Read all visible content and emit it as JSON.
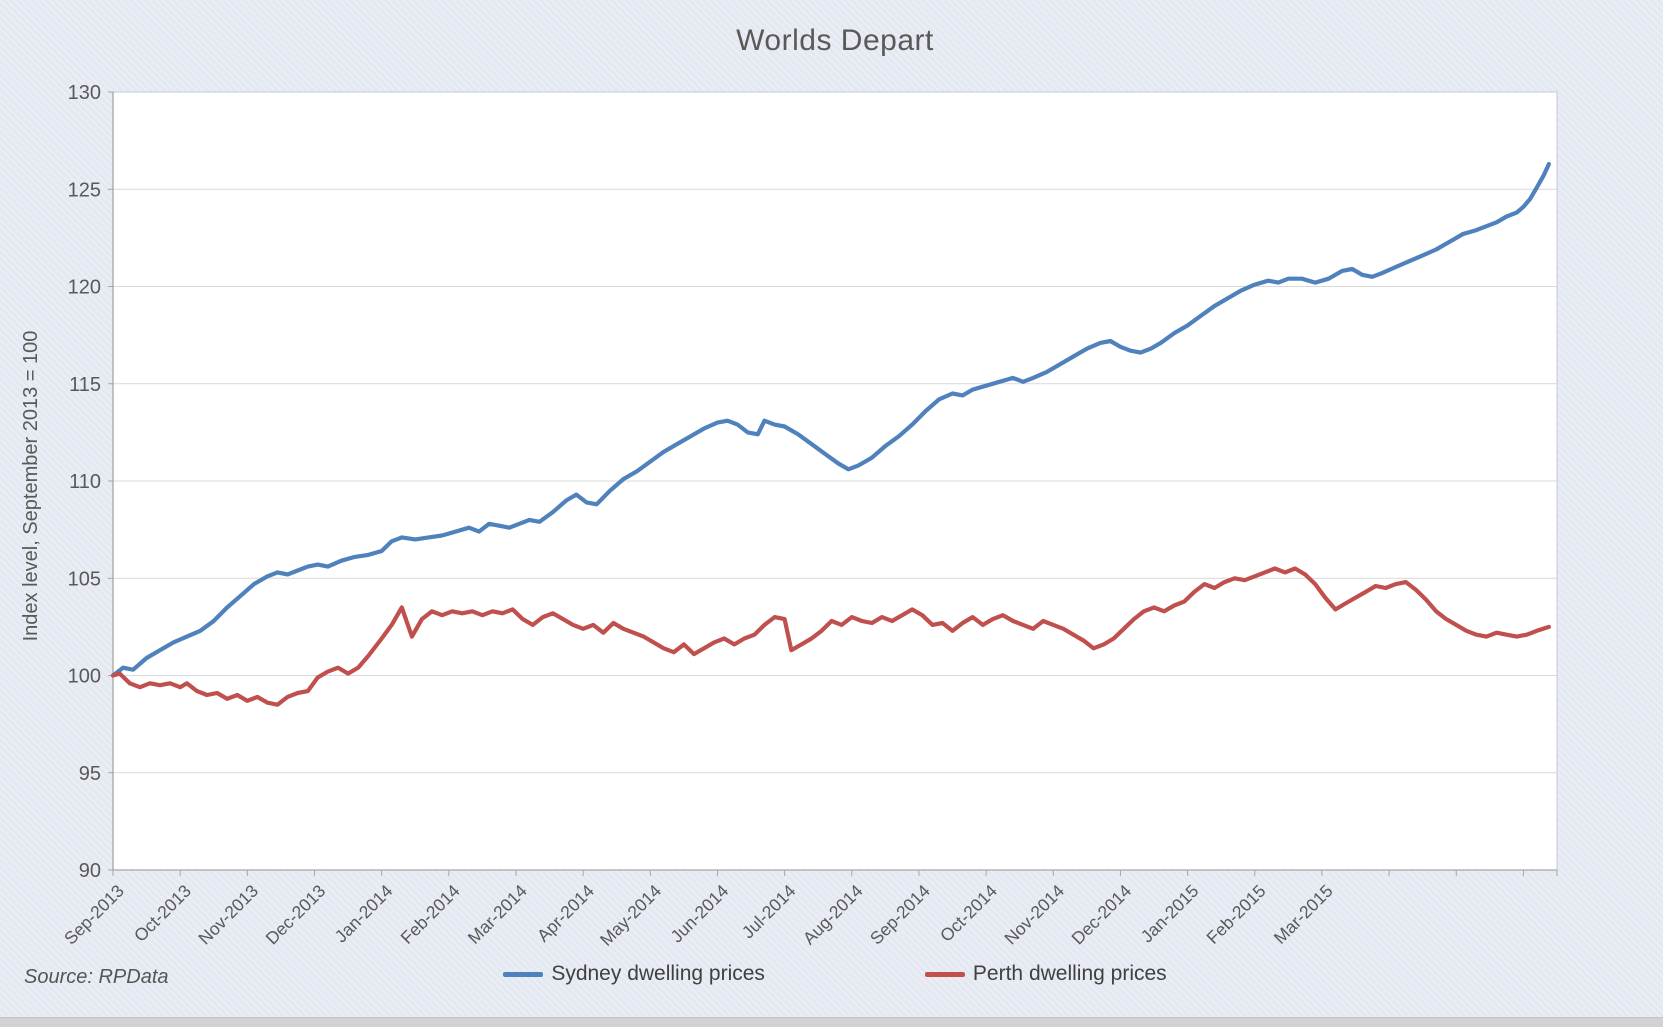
{
  "chart_data": {
    "type": "line",
    "title": "Worlds Depart",
    "ylabel": "Index level, September 2013 = 100",
    "xlabel": "",
    "ylim": [
      90,
      130
    ],
    "y_ticks": [
      90,
      95,
      100,
      105,
      110,
      115,
      120,
      125,
      130
    ],
    "x_unit": "months since Sep-2013",
    "xlim_months": [
      0,
      21.5
    ],
    "x_tick_labels": [
      "Sep-2013",
      "Oct-2013",
      "Nov-2013",
      "Dec-2013",
      "Jan-2014",
      "Feb-2014",
      "Mar-2014",
      "Apr-2014",
      "May-2014",
      "Jun-2014",
      "Jul-2014",
      "Aug-2014",
      "Sep-2014",
      "Oct-2014",
      "Nov-2014",
      "Dec-2014",
      "Jan-2015",
      "Feb-2015",
      "Mar-2015"
    ],
    "grid": "horizontal",
    "legend_position": "bottom",
    "source": "Source: RPData",
    "colors": {
      "sydney": "#4F81BD",
      "perth": "#C0504D",
      "gridline": "#d9d9d9",
      "axis": "#a6a6a6",
      "plot_border": "#c3c9d2",
      "tick_text": "#595959"
    },
    "series": [
      {
        "name": "Sydney dwelling prices",
        "color": "#4F81BD",
        "points": [
          [
            0,
            100
          ],
          [
            0.15,
            100.4
          ],
          [
            0.3,
            100.3
          ],
          [
            0.5,
            100.9
          ],
          [
            0.7,
            101.3
          ],
          [
            0.9,
            101.7
          ],
          [
            1.1,
            102
          ],
          [
            1.3,
            102.3
          ],
          [
            1.5,
            102.8
          ],
          [
            1.7,
            103.5
          ],
          [
            1.9,
            104.1
          ],
          [
            2.1,
            104.7
          ],
          [
            2.3,
            105.1
          ],
          [
            2.45,
            105.3
          ],
          [
            2.6,
            105.2
          ],
          [
            2.75,
            105.4
          ],
          [
            2.9,
            105.6
          ],
          [
            3.05,
            105.7
          ],
          [
            3.2,
            105.6
          ],
          [
            3.4,
            105.9
          ],
          [
            3.6,
            106.1
          ],
          [
            3.8,
            106.2
          ],
          [
            4,
            106.4
          ],
          [
            4.15,
            106.9
          ],
          [
            4.3,
            107.1
          ],
          [
            4.5,
            107
          ],
          [
            4.7,
            107.1
          ],
          [
            4.9,
            107.2
          ],
          [
            5.1,
            107.4
          ],
          [
            5.3,
            107.6
          ],
          [
            5.45,
            107.4
          ],
          [
            5.6,
            107.8
          ],
          [
            5.75,
            107.7
          ],
          [
            5.9,
            107.6
          ],
          [
            6.05,
            107.8
          ],
          [
            6.2,
            108
          ],
          [
            6.35,
            107.9
          ],
          [
            6.55,
            108.4
          ],
          [
            6.75,
            109
          ],
          [
            6.9,
            109.3
          ],
          [
            7.05,
            108.9
          ],
          [
            7.2,
            108.8
          ],
          [
            7.4,
            109.5
          ],
          [
            7.6,
            110.1
          ],
          [
            7.8,
            110.5
          ],
          [
            8,
            111
          ],
          [
            8.2,
            111.5
          ],
          [
            8.4,
            111.9
          ],
          [
            8.6,
            112.3
          ],
          [
            8.8,
            112.7
          ],
          [
            9,
            113
          ],
          [
            9.15,
            113.1
          ],
          [
            9.3,
            112.9
          ],
          [
            9.45,
            112.5
          ],
          [
            9.6,
            112.4
          ],
          [
            9.7,
            113.1
          ],
          [
            9.85,
            112.9
          ],
          [
            10,
            112.8
          ],
          [
            10.2,
            112.4
          ],
          [
            10.4,
            111.9
          ],
          [
            10.6,
            111.4
          ],
          [
            10.8,
            110.9
          ],
          [
            10.95,
            110.6
          ],
          [
            11.1,
            110.8
          ],
          [
            11.3,
            111.2
          ],
          [
            11.5,
            111.8
          ],
          [
            11.7,
            112.3
          ],
          [
            11.9,
            112.9
          ],
          [
            12.1,
            113.6
          ],
          [
            12.3,
            114.2
          ],
          [
            12.5,
            114.5
          ],
          [
            12.65,
            114.4
          ],
          [
            12.8,
            114.7
          ],
          [
            13,
            114.9
          ],
          [
            13.2,
            115.1
          ],
          [
            13.4,
            115.3
          ],
          [
            13.55,
            115.1
          ],
          [
            13.7,
            115.3
          ],
          [
            13.9,
            115.6
          ],
          [
            14.1,
            116
          ],
          [
            14.3,
            116.4
          ],
          [
            14.5,
            116.8
          ],
          [
            14.7,
            117.1
          ],
          [
            14.85,
            117.2
          ],
          [
            15,
            116.9
          ],
          [
            15.15,
            116.7
          ],
          [
            15.3,
            116.6
          ],
          [
            15.45,
            116.8
          ],
          [
            15.6,
            117.1
          ],
          [
            15.8,
            117.6
          ],
          [
            16,
            118
          ],
          [
            16.2,
            118.5
          ],
          [
            16.4,
            119
          ],
          [
            16.6,
            119.4
          ],
          [
            16.8,
            119.8
          ],
          [
            17,
            120.1
          ],
          [
            17.2,
            120.3
          ],
          [
            17.35,
            120.2
          ],
          [
            17.5,
            120.4
          ],
          [
            17.7,
            120.4
          ],
          [
            17.9,
            120.2
          ],
          [
            18.1,
            120.4
          ],
          [
            18.3,
            120.8
          ],
          [
            18.45,
            120.9
          ],
          [
            18.6,
            120.6
          ],
          [
            18.75,
            120.5
          ],
          [
            18.9,
            120.7
          ],
          [
            19.1,
            121
          ],
          [
            19.3,
            121.3
          ],
          [
            19.5,
            121.6
          ],
          [
            19.7,
            121.9
          ],
          [
            19.9,
            122.3
          ],
          [
            20.1,
            122.7
          ],
          [
            20.3,
            122.9
          ],
          [
            20.45,
            123.1
          ],
          [
            20.6,
            123.3
          ],
          [
            20.75,
            123.6
          ],
          [
            20.9,
            123.8
          ],
          [
            21,
            124.1
          ],
          [
            21.1,
            124.5
          ],
          [
            21.2,
            125.1
          ],
          [
            21.3,
            125.7
          ],
          [
            21.38,
            126.3
          ]
        ]
      },
      {
        "name": "Perth dwelling prices",
        "color": "#C0504D",
        "points": [
          [
            0,
            100
          ],
          [
            0.1,
            100.1
          ],
          [
            0.25,
            99.6
          ],
          [
            0.4,
            99.4
          ],
          [
            0.55,
            99.6
          ],
          [
            0.7,
            99.5
          ],
          [
            0.85,
            99.6
          ],
          [
            1,
            99.4
          ],
          [
            1.1,
            99.6
          ],
          [
            1.25,
            99.2
          ],
          [
            1.4,
            99
          ],
          [
            1.55,
            99.1
          ],
          [
            1.7,
            98.8
          ],
          [
            1.85,
            99
          ],
          [
            2,
            98.7
          ],
          [
            2.15,
            98.9
          ],
          [
            2.3,
            98.6
          ],
          [
            2.45,
            98.5
          ],
          [
            2.6,
            98.9
          ],
          [
            2.75,
            99.1
          ],
          [
            2.9,
            99.2
          ],
          [
            3.05,
            99.9
          ],
          [
            3.2,
            100.2
          ],
          [
            3.35,
            100.4
          ],
          [
            3.5,
            100.1
          ],
          [
            3.65,
            100.4
          ],
          [
            3.8,
            101
          ],
          [
            4,
            101.9
          ],
          [
            4.15,
            102.6
          ],
          [
            4.3,
            103.5
          ],
          [
            4.45,
            102
          ],
          [
            4.6,
            102.9
          ],
          [
            4.75,
            103.3
          ],
          [
            4.9,
            103.1
          ],
          [
            5.05,
            103.3
          ],
          [
            5.2,
            103.2
          ],
          [
            5.35,
            103.3
          ],
          [
            5.5,
            103.1
          ],
          [
            5.65,
            103.3
          ],
          [
            5.8,
            103.2
          ],
          [
            5.95,
            103.4
          ],
          [
            6.1,
            102.9
          ],
          [
            6.25,
            102.6
          ],
          [
            6.4,
            103
          ],
          [
            6.55,
            103.2
          ],
          [
            6.7,
            102.9
          ],
          [
            6.85,
            102.6
          ],
          [
            7,
            102.4
          ],
          [
            7.15,
            102.6
          ],
          [
            7.3,
            102.2
          ],
          [
            7.45,
            102.7
          ],
          [
            7.6,
            102.4
          ],
          [
            7.75,
            102.2
          ],
          [
            7.9,
            102
          ],
          [
            8.05,
            101.7
          ],
          [
            8.2,
            101.4
          ],
          [
            8.35,
            101.2
          ],
          [
            8.5,
            101.6
          ],
          [
            8.65,
            101.1
          ],
          [
            8.8,
            101.4
          ],
          [
            8.95,
            101.7
          ],
          [
            9.1,
            101.9
          ],
          [
            9.25,
            101.6
          ],
          [
            9.4,
            101.9
          ],
          [
            9.55,
            102.1
          ],
          [
            9.7,
            102.6
          ],
          [
            9.85,
            103
          ],
          [
            10,
            102.9
          ],
          [
            10.1,
            101.3
          ],
          [
            10.25,
            101.6
          ],
          [
            10.4,
            101.9
          ],
          [
            10.55,
            102.3
          ],
          [
            10.7,
            102.8
          ],
          [
            10.85,
            102.6
          ],
          [
            11,
            103
          ],
          [
            11.15,
            102.8
          ],
          [
            11.3,
            102.7
          ],
          [
            11.45,
            103
          ],
          [
            11.6,
            102.8
          ],
          [
            11.75,
            103.1
          ],
          [
            11.9,
            103.4
          ],
          [
            12.05,
            103.1
          ],
          [
            12.2,
            102.6
          ],
          [
            12.35,
            102.7
          ],
          [
            12.5,
            102.3
          ],
          [
            12.65,
            102.7
          ],
          [
            12.8,
            103
          ],
          [
            12.95,
            102.6
          ],
          [
            13.1,
            102.9
          ],
          [
            13.25,
            103.1
          ],
          [
            13.4,
            102.8
          ],
          [
            13.55,
            102.6
          ],
          [
            13.7,
            102.4
          ],
          [
            13.85,
            102.8
          ],
          [
            14,
            102.6
          ],
          [
            14.15,
            102.4
          ],
          [
            14.3,
            102.1
          ],
          [
            14.45,
            101.8
          ],
          [
            14.6,
            101.4
          ],
          [
            14.75,
            101.6
          ],
          [
            14.9,
            101.9
          ],
          [
            15.05,
            102.4
          ],
          [
            15.2,
            102.9
          ],
          [
            15.35,
            103.3
          ],
          [
            15.5,
            103.5
          ],
          [
            15.65,
            103.3
          ],
          [
            15.8,
            103.6
          ],
          [
            15.95,
            103.8
          ],
          [
            16.1,
            104.3
          ],
          [
            16.25,
            104.7
          ],
          [
            16.4,
            104.5
          ],
          [
            16.55,
            104.8
          ],
          [
            16.7,
            105
          ],
          [
            16.85,
            104.9
          ],
          [
            17,
            105.1
          ],
          [
            17.15,
            105.3
          ],
          [
            17.3,
            105.5
          ],
          [
            17.45,
            105.3
          ],
          [
            17.6,
            105.5
          ],
          [
            17.75,
            105.2
          ],
          [
            17.9,
            104.7
          ],
          [
            18.05,
            104
          ],
          [
            18.2,
            103.4
          ],
          [
            18.35,
            103.7
          ],
          [
            18.5,
            104
          ],
          [
            18.65,
            104.3
          ],
          [
            18.8,
            104.6
          ],
          [
            18.95,
            104.5
          ],
          [
            19.1,
            104.7
          ],
          [
            19.25,
            104.8
          ],
          [
            19.4,
            104.4
          ],
          [
            19.55,
            103.9
          ],
          [
            19.7,
            103.3
          ],
          [
            19.85,
            102.9
          ],
          [
            20,
            102.6
          ],
          [
            20.15,
            102.3
          ],
          [
            20.3,
            102.1
          ],
          [
            20.45,
            102
          ],
          [
            20.6,
            102.2
          ],
          [
            20.75,
            102.1
          ],
          [
            20.9,
            102
          ],
          [
            21.05,
            102.1
          ],
          [
            21.2,
            102.3
          ],
          [
            21.38,
            102.5
          ]
        ]
      }
    ]
  },
  "legend": {
    "items": [
      {
        "label": "Sydney dwelling prices",
        "color": "#4F81BD"
      },
      {
        "label": "Perth dwelling prices",
        "color": "#C0504D"
      }
    ]
  },
  "footer": {
    "source": "Source: RPData"
  }
}
